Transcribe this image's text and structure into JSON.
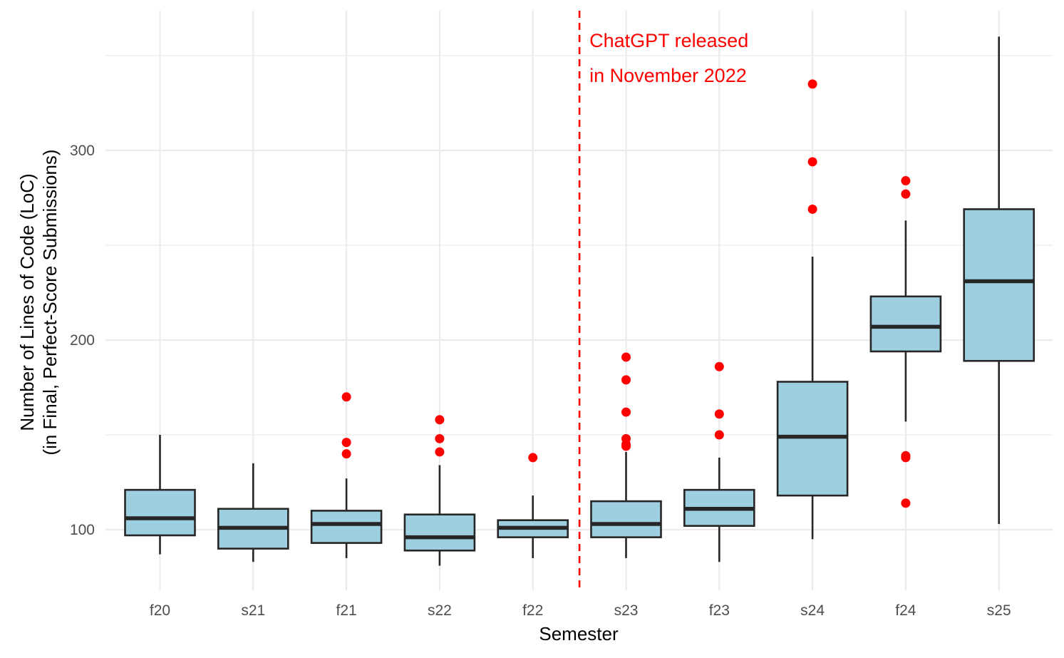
{
  "chart_data": {
    "type": "boxplot",
    "title": "",
    "xlabel": "Semester",
    "ylabel_line1": "Number of Lines of Code (LoC)",
    "ylabel_line2": "(in Final, Perfect-Score Submissions)",
    "ylim": [
      60,
      370
    ],
    "yticks": [
      100,
      200,
      300
    ],
    "grid": true,
    "categories": [
      "f20",
      "s21",
      "f21",
      "s22",
      "f22",
      "s23",
      "f23",
      "s24",
      "f24",
      "s25"
    ],
    "boxes": [
      {
        "label": "f20",
        "whisker_low": 87,
        "q1": 97,
        "median": 106,
        "q3": 121,
        "whisker_high": 150,
        "outliers": []
      },
      {
        "label": "s21",
        "whisker_low": 83,
        "q1": 90,
        "median": 101,
        "q3": 111,
        "whisker_high": 135,
        "outliers": []
      },
      {
        "label": "f21",
        "whisker_low": 85,
        "q1": 93,
        "median": 103,
        "q3": 110,
        "whisker_high": 127,
        "outliers": [
          140,
          146,
          170
        ]
      },
      {
        "label": "s22",
        "whisker_low": 81,
        "q1": 89,
        "median": 96,
        "q3": 108,
        "whisker_high": 134,
        "outliers": [
          141,
          148,
          158
        ]
      },
      {
        "label": "f22",
        "whisker_low": 85,
        "q1": 96,
        "median": 101,
        "q3": 105,
        "whisker_high": 118,
        "outliers": [
          138
        ]
      },
      {
        "label": "s23",
        "whisker_low": 85,
        "q1": 96,
        "median": 103,
        "q3": 115,
        "whisker_high": 141,
        "outliers": [
          144,
          145,
          148,
          162,
          179,
          191
        ]
      },
      {
        "label": "f23",
        "whisker_low": 83,
        "q1": 102,
        "median": 111,
        "q3": 121,
        "whisker_high": 138,
        "outliers": [
          150,
          161,
          186
        ]
      },
      {
        "label": "s24",
        "whisker_low": 95,
        "q1": 118,
        "median": 149,
        "q3": 178,
        "whisker_high": 244,
        "outliers": [
          269,
          294,
          335
        ]
      },
      {
        "label": "f24",
        "whisker_low": 157,
        "q1": 194,
        "median": 207,
        "q3": 223,
        "whisker_high": 263,
        "outliers": [
          114,
          138,
          139,
          277,
          284
        ]
      },
      {
        "label": "s25",
        "whisker_low": 103,
        "q1": 189,
        "median": 231,
        "q3": 269,
        "whisker_high": 360,
        "outliers": []
      }
    ],
    "annotation": {
      "line1": "ChatGPT released",
      "line2": "in November 2022",
      "between": [
        "f22",
        "s23"
      ],
      "color": "#ff0000"
    },
    "colors": {
      "box_fill": "#9ecfe0",
      "box_stroke": "#262626",
      "outlier": "#ff0000",
      "grid": "#ebebeb",
      "vline": "#ff0000"
    }
  }
}
